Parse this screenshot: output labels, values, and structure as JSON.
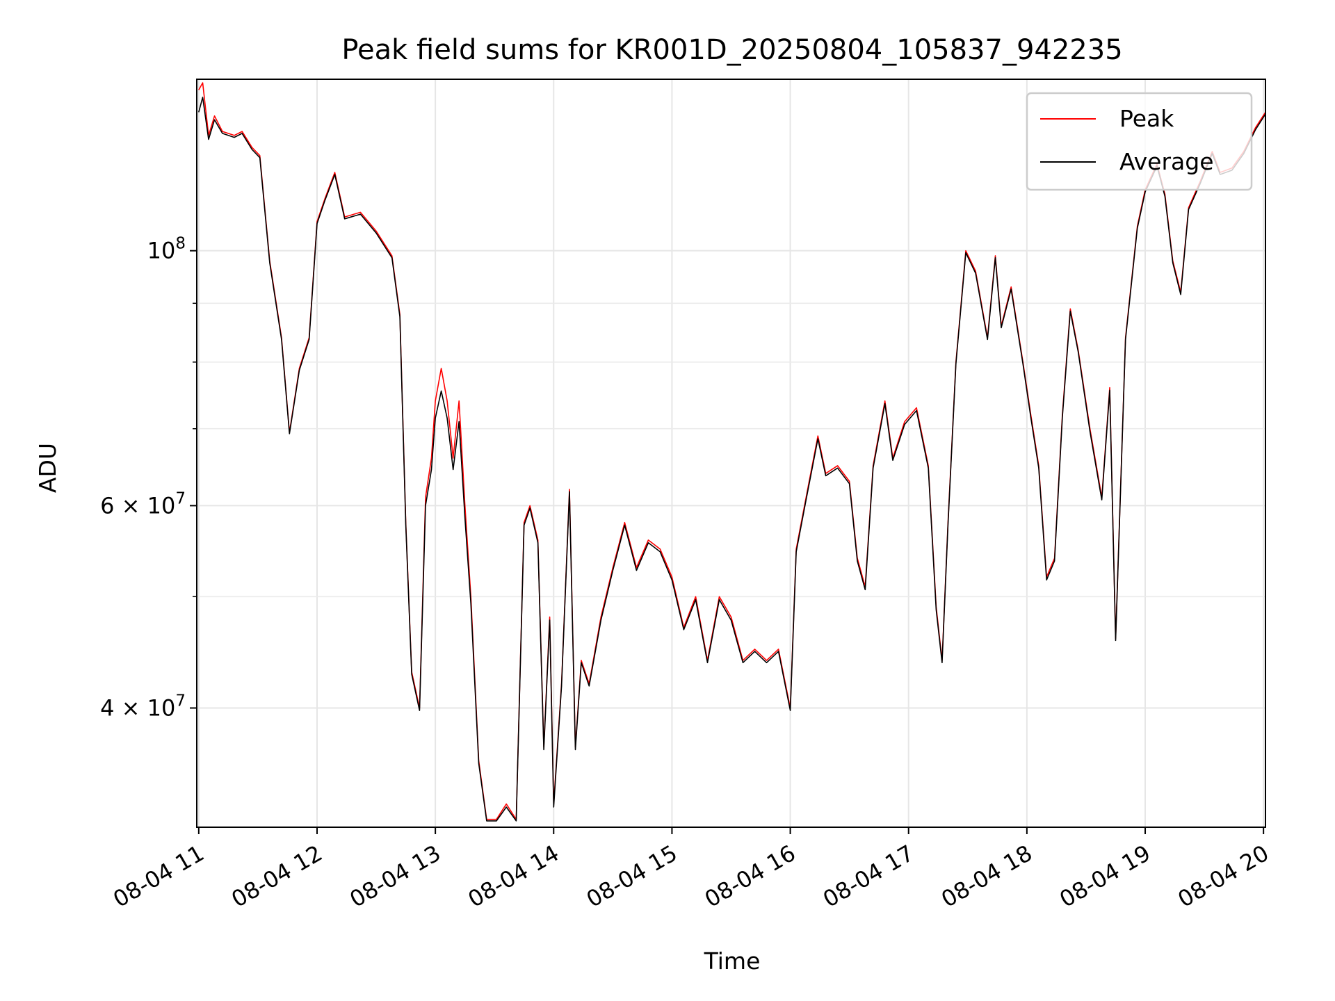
{
  "chart_data": {
    "type": "line",
    "title": "Peak field sums for KR001D_20250804_105837_942235",
    "xlabel": "Time",
    "ylabel": "ADU",
    "y_scale": "log",
    "ylim": [
      31500000,
      141000000
    ],
    "xlim": [
      "2025-08-04 10:59",
      "2025-08-04 20:01"
    ],
    "x_ticks": [
      "08-04 11",
      "08-04 12",
      "08-04 13",
      "08-04 14",
      "08-04 15",
      "08-04 16",
      "08-04 17",
      "08-04 18",
      "08-04 19",
      "08-04 20"
    ],
    "x_tick_rotation_deg": 30,
    "y_major_ticks": [
      {
        "value": 40000000,
        "mantissa": "4",
        "exponent": "7"
      },
      {
        "value": 60000000,
        "mantissa": "6",
        "exponent": "7"
      },
      {
        "value": 100000000,
        "mantissa": "",
        "exponent": "8"
      }
    ],
    "y_minor_ticks": [
      50000000,
      70000000,
      80000000,
      90000000
    ],
    "grid": true,
    "legend": {
      "position": "top-right"
    },
    "series": [
      {
        "name": "Peak",
        "color": "#ff0000",
        "points": [
          [
            "2025-08-04 11:00",
            138000000
          ],
          [
            "2025-08-04 11:02",
            140000000
          ],
          [
            "2025-08-04 11:05",
            126000000
          ],
          [
            "2025-08-04 11:08",
            131000000
          ],
          [
            "2025-08-04 11:12",
            127000000
          ],
          [
            "2025-08-04 11:18",
            126000000
          ],
          [
            "2025-08-04 11:22",
            127000000
          ],
          [
            "2025-08-04 11:27",
            123000000
          ],
          [
            "2025-08-04 11:31",
            121000000
          ],
          [
            "2025-08-04 11:36",
            98000000
          ],
          [
            "2025-08-04 11:42",
            84000000
          ],
          [
            "2025-08-04 11:46",
            69500000
          ],
          [
            "2025-08-04 11:51",
            79000000
          ],
          [
            "2025-08-04 11:56",
            84000000
          ],
          [
            "2025-08-04 12:00",
            106000000
          ],
          [
            "2025-08-04 12:04",
            111000000
          ],
          [
            "2025-08-04 12:09",
            117000000
          ],
          [
            "2025-08-04 12:14",
            107000000
          ],
          [
            "2025-08-04 12:22",
            108000000
          ],
          [
            "2025-08-04 12:30",
            104000000
          ],
          [
            "2025-08-04 12:38",
            99000000
          ],
          [
            "2025-08-04 12:42",
            88000000
          ],
          [
            "2025-08-04 12:45",
            58000000
          ],
          [
            "2025-08-04 12:48",
            43000000
          ],
          [
            "2025-08-04 12:52",
            40000000
          ],
          [
            "2025-08-04 12:55",
            61000000
          ],
          [
            "2025-08-04 12:58",
            66000000
          ],
          [
            "2025-08-04 13:00",
            74000000
          ],
          [
            "2025-08-04 13:03",
            79000000
          ],
          [
            "2025-08-04 13:06",
            74000000
          ],
          [
            "2025-08-04 13:09",
            66000000
          ],
          [
            "2025-08-04 13:12",
            74000000
          ],
          [
            "2025-08-04 13:15",
            60000000
          ],
          [
            "2025-08-04 13:18",
            50000000
          ],
          [
            "2025-08-04 13:22",
            36000000
          ],
          [
            "2025-08-04 13:26",
            32000000
          ],
          [
            "2025-08-04 13:31",
            32000000
          ],
          [
            "2025-08-04 13:36",
            33000000
          ],
          [
            "2025-08-04 13:41",
            32000000
          ],
          [
            "2025-08-04 13:45",
            58000000
          ],
          [
            "2025-08-04 13:48",
            60000000
          ],
          [
            "2025-08-04 13:52",
            56000000
          ],
          [
            "2025-08-04 13:55",
            37000000
          ],
          [
            "2025-08-04 13:58",
            48000000
          ],
          [
            "2025-08-04 14:00",
            33000000
          ],
          [
            "2025-08-04 14:04",
            42000000
          ],
          [
            "2025-08-04 14:08",
            62000000
          ],
          [
            "2025-08-04 14:11",
            37000000
          ],
          [
            "2025-08-04 14:14",
            44000000
          ],
          [
            "2025-08-04 14:18",
            42000000
          ],
          [
            "2025-08-04 14:24",
            48000000
          ],
          [
            "2025-08-04 14:30",
            53000000
          ],
          [
            "2025-08-04 14:36",
            58000000
          ],
          [
            "2025-08-04 14:42",
            53000000
          ],
          [
            "2025-08-04 14:48",
            56000000
          ],
          [
            "2025-08-04 14:54",
            55000000
          ],
          [
            "2025-08-04 15:00",
            52000000
          ],
          [
            "2025-08-04 15:06",
            47000000
          ],
          [
            "2025-08-04 15:12",
            50000000
          ],
          [
            "2025-08-04 15:18",
            44000000
          ],
          [
            "2025-08-04 15:24",
            50000000
          ],
          [
            "2025-08-04 15:30",
            48000000
          ],
          [
            "2025-08-04 15:36",
            44000000
          ],
          [
            "2025-08-04 15:42",
            45000000
          ],
          [
            "2025-08-04 15:48",
            44000000
          ],
          [
            "2025-08-04 15:54",
            45000000
          ],
          [
            "2025-08-04 16:00",
            40000000
          ],
          [
            "2025-08-04 16:03",
            55000000
          ],
          [
            "2025-08-04 16:08",
            61000000
          ],
          [
            "2025-08-04 16:14",
            69000000
          ],
          [
            "2025-08-04 16:18",
            64000000
          ],
          [
            "2025-08-04 16:24",
            65000000
          ],
          [
            "2025-08-04 16:30",
            63000000
          ],
          [
            "2025-08-04 16:34",
            54000000
          ],
          [
            "2025-08-04 16:38",
            51000000
          ],
          [
            "2025-08-04 16:42",
            65000000
          ],
          [
            "2025-08-04 16:48",
            74000000
          ],
          [
            "2025-08-04 16:52",
            66000000
          ],
          [
            "2025-08-04 16:58",
            71000000
          ],
          [
            "2025-08-04 17:04",
            73000000
          ],
          [
            "2025-08-04 17:10",
            65000000
          ],
          [
            "2025-08-04 17:14",
            49000000
          ],
          [
            "2025-08-04 17:17",
            44000000
          ],
          [
            "2025-08-04 17:20",
            58000000
          ],
          [
            "2025-08-04 17:24",
            80000000
          ],
          [
            "2025-08-04 17:29",
            100000000
          ],
          [
            "2025-08-04 17:34",
            96000000
          ],
          [
            "2025-08-04 17:40",
            84000000
          ],
          [
            "2025-08-04 17:44",
            99000000
          ],
          [
            "2025-08-04 17:47",
            86000000
          ],
          [
            "2025-08-04 17:52",
            93000000
          ],
          [
            "2025-08-04 17:58",
            80000000
          ],
          [
            "2025-08-04 18:02",
            72000000
          ],
          [
            "2025-08-04 18:06",
            65000000
          ],
          [
            "2025-08-04 18:10",
            52000000
          ],
          [
            "2025-08-04 18:14",
            54000000
          ],
          [
            "2025-08-04 18:18",
            72000000
          ],
          [
            "2025-08-04 18:22",
            89000000
          ],
          [
            "2025-08-04 18:26",
            82000000
          ],
          [
            "2025-08-04 18:32",
            70000000
          ],
          [
            "2025-08-04 18:38",
            61000000
          ],
          [
            "2025-08-04 18:42",
            76000000
          ],
          [
            "2025-08-04 18:45",
            46000000
          ],
          [
            "2025-08-04 18:50",
            84000000
          ],
          [
            "2025-08-04 18:56",
            105000000
          ],
          [
            "2025-08-04 19:00",
            113000000
          ],
          [
            "2025-08-04 19:06",
            119000000
          ],
          [
            "2025-08-04 19:10",
            112000000
          ],
          [
            "2025-08-04 19:14",
            98000000
          ],
          [
            "2025-08-04 19:18",
            92000000
          ],
          [
            "2025-08-04 19:22",
            109000000
          ],
          [
            "2025-08-04 19:28",
            115000000
          ],
          [
            "2025-08-04 19:34",
            122000000
          ],
          [
            "2025-08-04 19:38",
            117000000
          ],
          [
            "2025-08-04 19:44",
            118000000
          ],
          [
            "2025-08-04 19:50",
            122000000
          ],
          [
            "2025-08-04 19:56",
            128000000
          ],
          [
            "2025-08-04 20:01",
            132000000
          ]
        ]
      },
      {
        "name": "Average",
        "color": "#000000",
        "points": [
          [
            "2025-08-04 11:00",
            132000000
          ],
          [
            "2025-08-04 11:02",
            136000000
          ],
          [
            "2025-08-04 11:05",
            125000000
          ],
          [
            "2025-08-04 11:08",
            130000000
          ],
          [
            "2025-08-04 11:12",
            126500000
          ],
          [
            "2025-08-04 11:18",
            125500000
          ],
          [
            "2025-08-04 11:22",
            126500000
          ],
          [
            "2025-08-04 11:27",
            122500000
          ],
          [
            "2025-08-04 11:31",
            120500000
          ],
          [
            "2025-08-04 11:36",
            97600000
          ],
          [
            "2025-08-04 11:42",
            83700000
          ],
          [
            "2025-08-04 11:46",
            69300000
          ],
          [
            "2025-08-04 11:51",
            78700000
          ],
          [
            "2025-08-04 11:56",
            83700000
          ],
          [
            "2025-08-04 12:00",
            105600000
          ],
          [
            "2025-08-04 12:04",
            110600000
          ],
          [
            "2025-08-04 12:09",
            116500000
          ],
          [
            "2025-08-04 12:14",
            106600000
          ],
          [
            "2025-08-04 12:22",
            107600000
          ],
          [
            "2025-08-04 12:30",
            103600000
          ],
          [
            "2025-08-04 12:38",
            98600000
          ],
          [
            "2025-08-04 12:42",
            87600000
          ],
          [
            "2025-08-04 12:45",
            57700000
          ],
          [
            "2025-08-04 12:48",
            42800000
          ],
          [
            "2025-08-04 12:52",
            39800000
          ],
          [
            "2025-08-04 12:55",
            60000000
          ],
          [
            "2025-08-04 12:58",
            64500000
          ],
          [
            "2025-08-04 13:00",
            71500000
          ],
          [
            "2025-08-04 13:03",
            75500000
          ],
          [
            "2025-08-04 13:06",
            71500000
          ],
          [
            "2025-08-04 13:09",
            64500000
          ],
          [
            "2025-08-04 13:12",
            71000000
          ],
          [
            "2025-08-04 13:15",
            58500000
          ],
          [
            "2025-08-04 13:18",
            49300000
          ],
          [
            "2025-08-04 13:22",
            35800000
          ],
          [
            "2025-08-04 13:26",
            31900000
          ],
          [
            "2025-08-04 13:31",
            31900000
          ],
          [
            "2025-08-04 13:36",
            32800000
          ],
          [
            "2025-08-04 13:41",
            31900000
          ],
          [
            "2025-08-04 13:45",
            57700000
          ],
          [
            "2025-08-04 13:48",
            59700000
          ],
          [
            "2025-08-04 13:52",
            55700000
          ],
          [
            "2025-08-04 13:55",
            36800000
          ],
          [
            "2025-08-04 13:58",
            47700000
          ],
          [
            "2025-08-04 14:00",
            32800000
          ],
          [
            "2025-08-04 14:04",
            41800000
          ],
          [
            "2025-08-04 14:08",
            61700000
          ],
          [
            "2025-08-04 14:11",
            36800000
          ],
          [
            "2025-08-04 14:14",
            43800000
          ],
          [
            "2025-08-04 14:18",
            41800000
          ],
          [
            "2025-08-04 14:24",
            47700000
          ],
          [
            "2025-08-04 14:30",
            52700000
          ],
          [
            "2025-08-04 14:36",
            57700000
          ],
          [
            "2025-08-04 14:42",
            52700000
          ],
          [
            "2025-08-04 14:48",
            55700000
          ],
          [
            "2025-08-04 14:54",
            54700000
          ],
          [
            "2025-08-04 15:00",
            51700000
          ],
          [
            "2025-08-04 15:06",
            46800000
          ],
          [
            "2025-08-04 15:12",
            49700000
          ],
          [
            "2025-08-04 15:18",
            43800000
          ],
          [
            "2025-08-04 15:24",
            49700000
          ],
          [
            "2025-08-04 15:30",
            47700000
          ],
          [
            "2025-08-04 15:36",
            43800000
          ],
          [
            "2025-08-04 15:42",
            44800000
          ],
          [
            "2025-08-04 15:48",
            43800000
          ],
          [
            "2025-08-04 15:54",
            44800000
          ],
          [
            "2025-08-04 16:00",
            39800000
          ],
          [
            "2025-08-04 16:03",
            54700000
          ],
          [
            "2025-08-04 16:08",
            60700000
          ],
          [
            "2025-08-04 16:14",
            68600000
          ],
          [
            "2025-08-04 16:18",
            63700000
          ],
          [
            "2025-08-04 16:24",
            64700000
          ],
          [
            "2025-08-04 16:30",
            62700000
          ],
          [
            "2025-08-04 16:34",
            53700000
          ],
          [
            "2025-08-04 16:38",
            50700000
          ],
          [
            "2025-08-04 16:42",
            64700000
          ],
          [
            "2025-08-04 16:48",
            73600000
          ],
          [
            "2025-08-04 16:52",
            65700000
          ],
          [
            "2025-08-04 16:58",
            70600000
          ],
          [
            "2025-08-04 17:04",
            72600000
          ],
          [
            "2025-08-04 17:10",
            64700000
          ],
          [
            "2025-08-04 17:14",
            48700000
          ],
          [
            "2025-08-04 17:17",
            43800000
          ],
          [
            "2025-08-04 17:20",
            57700000
          ],
          [
            "2025-08-04 17:24",
            79700000
          ],
          [
            "2025-08-04 17:29",
            99600000
          ],
          [
            "2025-08-04 17:34",
            95600000
          ],
          [
            "2025-08-04 17:40",
            83700000
          ],
          [
            "2025-08-04 17:44",
            98600000
          ],
          [
            "2025-08-04 17:47",
            85700000
          ],
          [
            "2025-08-04 17:52",
            92600000
          ],
          [
            "2025-08-04 17:58",
            79700000
          ],
          [
            "2025-08-04 18:02",
            71600000
          ],
          [
            "2025-08-04 18:06",
            64700000
          ],
          [
            "2025-08-04 18:10",
            51700000
          ],
          [
            "2025-08-04 18:14",
            53700000
          ],
          [
            "2025-08-04 18:18",
            71600000
          ],
          [
            "2025-08-04 18:22",
            88600000
          ],
          [
            "2025-08-04 18:26",
            81700000
          ],
          [
            "2025-08-04 18:32",
            69600000
          ],
          [
            "2025-08-04 18:38",
            60700000
          ],
          [
            "2025-08-04 18:42",
            75600000
          ],
          [
            "2025-08-04 18:45",
            45800000
          ],
          [
            "2025-08-04 18:50",
            83700000
          ],
          [
            "2025-08-04 18:56",
            104600000
          ],
          [
            "2025-08-04 19:00",
            112500000
          ],
          [
            "2025-08-04 19:06",
            118500000
          ],
          [
            "2025-08-04 19:10",
            111500000
          ],
          [
            "2025-08-04 19:14",
            97600000
          ],
          [
            "2025-08-04 19:18",
            91600000
          ],
          [
            "2025-08-04 19:22",
            108600000
          ],
          [
            "2025-08-04 19:28",
            114500000
          ],
          [
            "2025-08-04 19:34",
            121500000
          ],
          [
            "2025-08-04 19:38",
            116500000
          ],
          [
            "2025-08-04 19:44",
            117500000
          ],
          [
            "2025-08-04 19:50",
            121500000
          ],
          [
            "2025-08-04 19:56",
            127500000
          ],
          [
            "2025-08-04 20:01",
            131500000
          ]
        ]
      }
    ]
  }
}
